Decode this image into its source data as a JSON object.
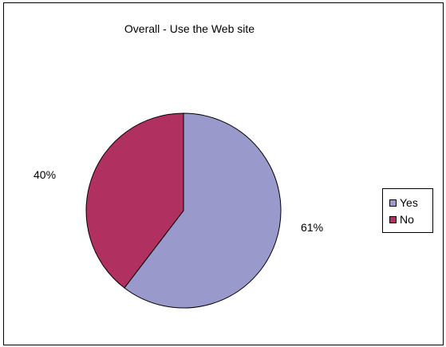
{
  "chart_data": {
    "type": "pie",
    "title": "Overall - Use the Web site",
    "categories": [
      "Yes",
      "No"
    ],
    "values": [
      61,
      40
    ],
    "data_labels": [
      "61%",
      "40%"
    ],
    "colors": [
      "#9999cc",
      "#b03060"
    ],
    "legend": {
      "placement": "right",
      "entries": [
        "Yes",
        "No"
      ]
    }
  }
}
